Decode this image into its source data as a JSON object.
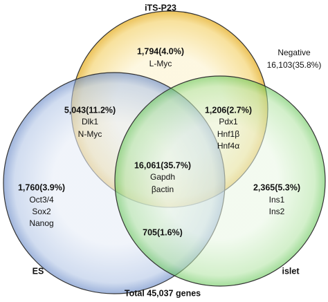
{
  "sets": [
    {
      "label": "iTS-P23"
    },
    {
      "label": "ES"
    },
    {
      "label": "islet"
    }
  ],
  "negative": {
    "label": "Negative",
    "count": "16,103(35.8%)"
  },
  "regions": [
    {
      "count": "1,794(4.0%)",
      "genes": [
        "L-Myc"
      ]
    },
    {
      "count": "5,043(11.2%)",
      "genes": [
        "Dlk1",
        "N-Myc"
      ]
    },
    {
      "count": "1,206(2.7%)",
      "genes": [
        "Pdx1",
        "Hnf1β",
        "Hnf4α"
      ]
    },
    {
      "count": "16,061(35.7%)",
      "genes": [
        "Gapdh",
        "βactin"
      ]
    },
    {
      "count": "1,760(3.9%)",
      "genes": [
        "Oct3/4",
        "Sox2",
        "Nanog"
      ]
    },
    {
      "count": "2,365(5.3%)",
      "genes": [
        "Ins1",
        "Ins2"
      ]
    },
    {
      "count": "705(1.6%)",
      "genes": []
    }
  ],
  "footer": "Total 45,037 genes"
}
